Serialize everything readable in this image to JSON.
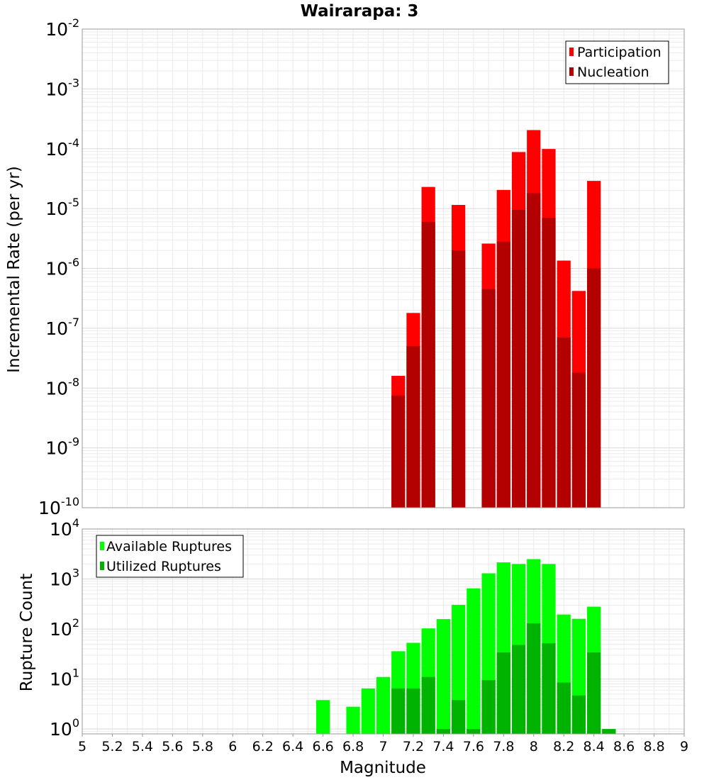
{
  "title": "Wairarapa: 3",
  "chart_data": [
    {
      "type": "bar",
      "title": "Wairarapa: 3",
      "xlabel": "",
      "ylabel": "Incremental Rate (per yr)",
      "yscale": "log",
      "ylim": [
        1e-10,
        0.01
      ],
      "xlim": [
        5,
        9
      ],
      "grid": true,
      "legend_position": "top-right",
      "y_tick_labels": [
        {
          "base": "10",
          "exp": "-10"
        },
        {
          "base": "10",
          "exp": "-9"
        },
        {
          "base": "10",
          "exp": "-8"
        },
        {
          "base": "10",
          "exp": "-7"
        },
        {
          "base": "10",
          "exp": "-6"
        },
        {
          "base": "10",
          "exp": "-5"
        },
        {
          "base": "10",
          "exp": "-4"
        },
        {
          "base": "10",
          "exp": "-3"
        },
        {
          "base": "10",
          "exp": "-2"
        }
      ],
      "x": [
        7.1,
        7.2,
        7.3,
        7.5,
        7.7,
        7.8,
        7.9,
        8.0,
        8.1,
        8.2,
        8.3,
        8.4
      ],
      "series": [
        {
          "name": "Participation",
          "color": "#ff0000",
          "values": [
            1.6e-08,
            1.8e-07,
            2.3e-05,
            1.15e-05,
            2.6e-06,
            2.05e-05,
            8.8e-05,
            0.000205,
            9.9e-05,
            1.35e-06,
            4.2e-07,
            2.9e-05
          ]
        },
        {
          "name": "Nucleation",
          "color": "#b30000",
          "values": [
            7.5e-09,
            5e-08,
            6e-06,
            2e-06,
            4.5e-07,
            2.8e-06,
            9.5e-06,
            1.8e-05,
            7e-06,
            7e-08,
            1.8e-08,
            1e-06
          ]
        }
      ]
    },
    {
      "type": "bar",
      "title": "",
      "xlabel": "Magnitude",
      "ylabel": "Rupture Count",
      "yscale": "log",
      "ylim": [
        0.8,
        10000
      ],
      "xlim": [
        5,
        9
      ],
      "grid": true,
      "legend_position": "top-left",
      "x_tick_labels": [
        "5",
        "5.2",
        "5.4",
        "5.6",
        "5.8",
        "6",
        "6.2",
        "6.4",
        "6.6",
        "6.8",
        "7",
        "7.2",
        "7.4",
        "7.6",
        "7.8",
        "8",
        "8.2",
        "8.4",
        "8.6",
        "8.8",
        "9"
      ],
      "y_tick_labels": [
        {
          "base": "10",
          "exp": "0"
        },
        {
          "base": "10",
          "exp": "1"
        },
        {
          "base": "10",
          "exp": "2"
        },
        {
          "base": "10",
          "exp": "3"
        },
        {
          "base": "10",
          "exp": "4"
        }
      ],
      "x": [
        6.6,
        6.8,
        6.9,
        7.0,
        7.1,
        7.2,
        7.3,
        7.4,
        7.5,
        7.6,
        7.7,
        7.8,
        7.9,
        8.0,
        8.1,
        8.2,
        8.3,
        8.4,
        8.5
      ],
      "series": [
        {
          "name": "Available Ruptures",
          "color": "#00ff00",
          "values": [
            3.8,
            2.8,
            6.5,
            11,
            36,
            53,
            103,
            158,
            305,
            650,
            1300,
            2150,
            2000,
            2500,
            2000,
            195,
            160,
            280,
            1.0
          ]
        },
        {
          "name": "Utilized Ruptures",
          "color": "#00b300",
          "values": [
            0,
            0,
            0,
            0,
            6.5,
            6.5,
            11,
            1.0,
            3.8,
            1.0,
            9.5,
            34,
            48,
            130,
            52,
            8.5,
            4.7,
            34,
            1.0
          ]
        }
      ]
    }
  ]
}
